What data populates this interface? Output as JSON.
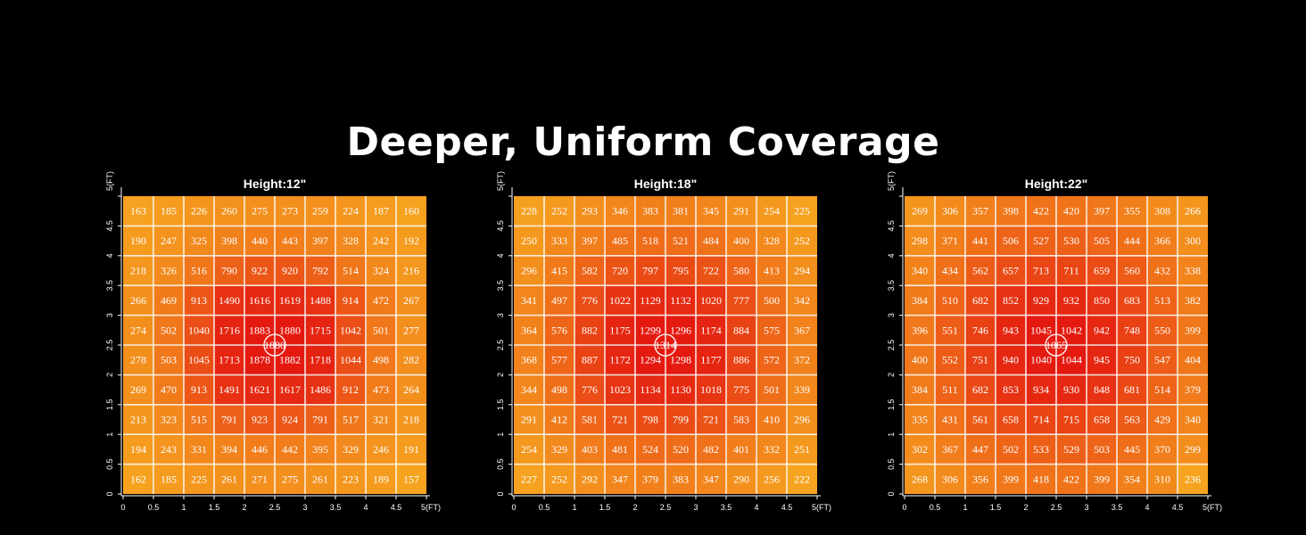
{
  "headline": "Deeper, Uniform Coverage",
  "colors": {
    "background": "#000000",
    "cool": "#f6a41f",
    "hot": "#e41a10",
    "grid": "#ffffff"
  },
  "chart_data": [
    {
      "type": "heatmap",
      "title": "Height:12\"",
      "x_ticks": [
        "0",
        "0.5",
        "1",
        "1.5",
        "2",
        "2.5",
        "3",
        "3.5",
        "4",
        "4.5",
        "5(FT)"
      ],
      "y_ticks": [
        "0",
        "0.5",
        "1",
        "1.5",
        "2",
        "2.5",
        "3",
        "3.5",
        "4",
        "4.5",
        "5(FT)"
      ],
      "xlim": [
        0,
        5
      ],
      "ylim": [
        0,
        5
      ],
      "rows_top_to_bottom": [
        [
          163,
          185,
          226,
          260,
          275,
          273,
          259,
          224,
          187,
          160
        ],
        [
          190,
          247,
          325,
          398,
          440,
          443,
          397,
          328,
          242,
          192
        ],
        [
          218,
          326,
          516,
          790,
          922,
          920,
          792,
          514,
          324,
          216
        ],
        [
          266,
          469,
          913,
          1490,
          1616,
          1619,
          1488,
          914,
          472,
          267
        ],
        [
          274,
          502,
          1040,
          1716,
          1883,
          1880,
          1715,
          1042,
          501,
          277
        ],
        [
          278,
          503,
          1045,
          1713,
          1878,
          1882,
          1718,
          1044,
          498,
          282
        ],
        [
          269,
          470,
          913,
          1491,
          1621,
          1617,
          1486,
          912,
          473,
          264
        ],
        [
          213,
          323,
          515,
          791,
          923,
          924,
          791,
          517,
          321,
          218
        ],
        [
          194,
          243,
          331,
          394,
          446,
          442,
          395,
          329,
          246,
          191
        ],
        [
          162,
          185,
          225,
          261,
          271,
          275,
          261,
          223,
          189,
          157
        ]
      ],
      "center_value": "1880"
    },
    {
      "type": "heatmap",
      "title": "Height:18\"",
      "x_ticks": [
        "0",
        "0.5",
        "1",
        "1.5",
        "2",
        "2.5",
        "3",
        "3.5",
        "4",
        "4.5",
        "5(FT)"
      ],
      "y_ticks": [
        "0",
        "0.5",
        "1",
        "1.5",
        "2",
        "2.5",
        "3",
        "3.5",
        "4",
        "4.5",
        "5(FT)"
      ],
      "xlim": [
        0,
        5
      ],
      "ylim": [
        0,
        5
      ],
      "rows_top_to_bottom": [
        [
          228,
          252,
          293,
          346,
          383,
          381,
          345,
          291,
          254,
          225
        ],
        [
          250,
          333,
          397,
          485,
          518,
          521,
          484,
          400,
          328,
          252
        ],
        [
          296,
          415,
          582,
          720,
          797,
          795,
          722,
          580,
          413,
          294
        ],
        [
          341,
          497,
          776,
          1022,
          1129,
          1132,
          1020,
          777,
          500,
          342
        ],
        [
          364,
          576,
          882,
          1175,
          1299,
          1296,
          1174,
          884,
          575,
          367
        ],
        [
          368,
          577,
          887,
          1172,
          1294,
          1298,
          1177,
          886,
          572,
          372
        ],
        [
          344,
          498,
          776,
          1023,
          1134,
          1130,
          1018,
          775,
          501,
          339
        ],
        [
          291,
          412,
          581,
          721,
          798,
          799,
          721,
          583,
          410,
          296
        ],
        [
          254,
          329,
          403,
          481,
          524,
          520,
          482,
          401,
          332,
          251
        ],
        [
          227,
          252,
          292,
          347,
          379,
          383,
          347,
          290,
          256,
          222
        ]
      ],
      "center_value": "1314"
    },
    {
      "type": "heatmap",
      "title": "Height:22\"",
      "x_ticks": [
        "0",
        "0.5",
        "1",
        "1.5",
        "2",
        "2.5",
        "3",
        "3.5",
        "4",
        "4.5",
        "5(FT)"
      ],
      "y_ticks": [
        "0",
        "0.5",
        "1",
        "1.5",
        "2",
        "2.5",
        "3",
        "3.5",
        "4",
        "4.5",
        "5(FT)"
      ],
      "xlim": [
        0,
        5
      ],
      "ylim": [
        0,
        5
      ],
      "rows_top_to_bottom": [
        [
          269,
          306,
          357,
          398,
          422,
          420,
          397,
          355,
          308,
          266
        ],
        [
          298,
          371,
          441,
          506,
          527,
          530,
          505,
          444,
          366,
          300
        ],
        [
          340,
          434,
          562,
          657,
          713,
          711,
          659,
          560,
          432,
          338
        ],
        [
          384,
          510,
          682,
          852,
          929,
          932,
          850,
          683,
          513,
          382
        ],
        [
          396,
          551,
          746,
          943,
          1045,
          1042,
          942,
          748,
          550,
          399
        ],
        [
          400,
          552,
          751,
          940,
          1040,
          1044,
          945,
          750,
          547,
          404
        ],
        [
          384,
          511,
          682,
          853,
          934,
          930,
          848,
          681,
          514,
          379
        ],
        [
          335,
          431,
          561,
          658,
          714,
          715,
          658,
          563,
          429,
          340
        ],
        [
          302,
          367,
          447,
          502,
          533,
          529,
          503,
          445,
          370,
          299
        ],
        [
          268,
          306,
          356,
          399,
          418,
          422,
          399,
          354,
          310,
          236
        ]
      ],
      "center_value": "1065"
    }
  ]
}
